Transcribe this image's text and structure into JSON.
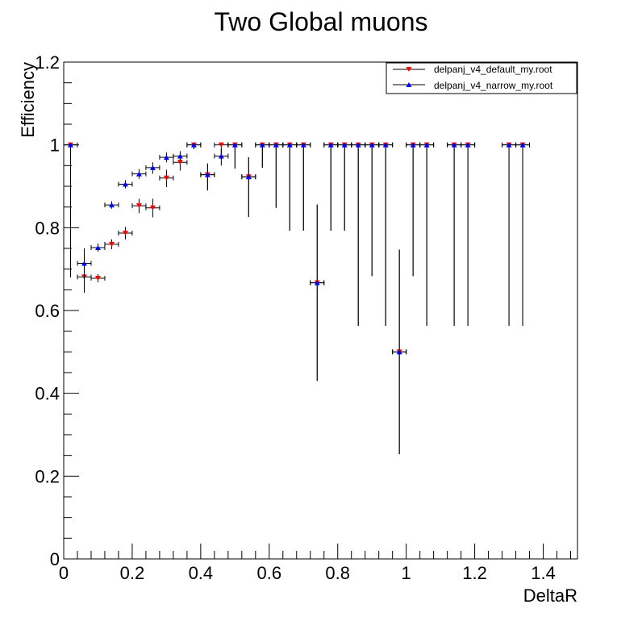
{
  "chart_data": {
    "type": "scatter",
    "title": "Two Global muons",
    "xlabel": "DeltaR",
    "ylabel": "Efficiency",
    "xlim": [
      0,
      1.5
    ],
    "ylim": [
      0,
      1.2
    ],
    "x_ticks": [
      0,
      0.2,
      0.4,
      0.6,
      0.8,
      1,
      1.2,
      1.4
    ],
    "x_tick_labels": [
      "0",
      "0.2",
      "0.4",
      "0.6",
      "0.8",
      "1",
      "1.2",
      "1.4"
    ],
    "y_ticks": [
      0,
      0.2,
      0.4,
      0.6,
      0.8,
      1,
      1.2
    ],
    "y_tick_labels": [
      "0",
      "0.2",
      "0.4",
      "0.6",
      "0.8",
      "1",
      "1.2"
    ],
    "x_error": 0.02,
    "grid": false,
    "legend_position": "top-right",
    "series": [
      {
        "name": "delpanj_v4_default_my.root",
        "marker": "triangle-down",
        "color": "#ff0000",
        "points": [
          {
            "x": 0.02,
            "y": 1.0,
            "ylo": 0.68,
            "yhi": 1.0
          },
          {
            "x": 0.06,
            "y": 0.681,
            "ylo": 0.643,
            "yhi": 0.717
          },
          {
            "x": 0.1,
            "y": 0.678,
            "ylo": 0.668,
            "yhi": 0.688
          },
          {
            "x": 0.14,
            "y": 0.76,
            "ylo": 0.748,
            "yhi": 0.772
          },
          {
            "x": 0.18,
            "y": 0.787,
            "ylo": 0.772,
            "yhi": 0.802
          },
          {
            "x": 0.22,
            "y": 0.853,
            "ylo": 0.835,
            "yhi": 0.87
          },
          {
            "x": 0.26,
            "y": 0.848,
            "ylo": 0.825,
            "yhi": 0.87
          },
          {
            "x": 0.3,
            "y": 0.92,
            "ylo": 0.898,
            "yhi": 0.94
          },
          {
            "x": 0.34,
            "y": 0.958,
            "ylo": 0.938,
            "yhi": 0.975
          },
          {
            "x": 0.38,
            "y": 1.0,
            "ylo": 0.99,
            "yhi": 1.0
          },
          {
            "x": 0.42,
            "y": 0.928,
            "ylo": 0.89,
            "yhi": 0.955
          },
          {
            "x": 0.46,
            "y": 1.0,
            "ylo": 0.965,
            "yhi": 1.0
          },
          {
            "x": 0.5,
            "y": 1.0,
            "ylo": 0.943,
            "yhi": 1.0
          },
          {
            "x": 0.54,
            "y": 0.923,
            "ylo": 0.826,
            "yhi": 0.97
          },
          {
            "x": 0.58,
            "y": 1.0,
            "ylo": 0.945,
            "yhi": 1.0
          },
          {
            "x": 0.62,
            "y": 1.0,
            "ylo": 0.848,
            "yhi": 1.0
          },
          {
            "x": 0.66,
            "y": 1.0,
            "ylo": 0.793,
            "yhi": 1.0
          },
          {
            "x": 0.7,
            "y": 1.0,
            "ylo": 0.793,
            "yhi": 1.0
          },
          {
            "x": 0.74,
            "y": 0.667,
            "ylo": 0.43,
            "yhi": 0.856
          },
          {
            "x": 0.78,
            "y": 1.0,
            "ylo": 0.793,
            "yhi": 1.0
          },
          {
            "x": 0.82,
            "y": 1.0,
            "ylo": 0.793,
            "yhi": 1.0
          },
          {
            "x": 0.86,
            "y": 1.0,
            "ylo": 0.563,
            "yhi": 1.0
          },
          {
            "x": 0.9,
            "y": 1.0,
            "ylo": 0.683,
            "yhi": 1.0
          },
          {
            "x": 0.94,
            "y": 1.0,
            "ylo": 0.563,
            "yhi": 1.0
          },
          {
            "x": 0.98,
            "y": 0.5,
            "ylo": 0.253,
            "yhi": 0.747
          },
          {
            "x": 1.02,
            "y": 1.0,
            "ylo": 0.683,
            "yhi": 1.0
          },
          {
            "x": 1.06,
            "y": 1.0,
            "ylo": 0.563,
            "yhi": 1.0
          },
          {
            "x": 1.14,
            "y": 1.0,
            "ylo": 0.563,
            "yhi": 1.0
          },
          {
            "x": 1.18,
            "y": 1.0,
            "ylo": 0.563,
            "yhi": 1.0
          },
          {
            "x": 1.3,
            "y": 1.0,
            "ylo": 0.563,
            "yhi": 1.0
          },
          {
            "x": 1.34,
            "y": 1.0,
            "ylo": 0.563,
            "yhi": 1.0
          }
        ]
      },
      {
        "name": "delpanj_v4_narrow_my.root",
        "marker": "triangle-up",
        "color": "#0000ff",
        "points": [
          {
            "x": 0.02,
            "y": 1.0,
            "ylo": 0.68,
            "yhi": 1.0
          },
          {
            "x": 0.06,
            "y": 0.714,
            "ylo": 0.675,
            "yhi": 0.75
          },
          {
            "x": 0.1,
            "y": 0.752,
            "ylo": 0.742,
            "yhi": 0.762
          },
          {
            "x": 0.14,
            "y": 0.855,
            "ylo": 0.846,
            "yhi": 0.864
          },
          {
            "x": 0.18,
            "y": 0.905,
            "ylo": 0.895,
            "yhi": 0.915
          },
          {
            "x": 0.22,
            "y": 0.93,
            "ylo": 0.918,
            "yhi": 0.942
          },
          {
            "x": 0.26,
            "y": 0.945,
            "ylo": 0.93,
            "yhi": 0.958
          },
          {
            "x": 0.3,
            "y": 0.97,
            "ylo": 0.958,
            "yhi": 0.982
          },
          {
            "x": 0.34,
            "y": 0.973,
            "ylo": 0.96,
            "yhi": 0.985
          },
          {
            "x": 0.38,
            "y": 1.0,
            "ylo": 0.99,
            "yhi": 1.0
          },
          {
            "x": 0.42,
            "y": 0.928,
            "ylo": 0.89,
            "yhi": 0.955
          },
          {
            "x": 0.46,
            "y": 0.973,
            "ylo": 0.95,
            "yhi": 0.99
          },
          {
            "x": 0.5,
            "y": 1.0,
            "ylo": 0.943,
            "yhi": 1.0
          },
          {
            "x": 0.54,
            "y": 0.923,
            "ylo": 0.826,
            "yhi": 0.97
          },
          {
            "x": 0.58,
            "y": 1.0,
            "ylo": 0.945,
            "yhi": 1.0
          },
          {
            "x": 0.62,
            "y": 1.0,
            "ylo": 0.848,
            "yhi": 1.0
          },
          {
            "x": 0.66,
            "y": 1.0,
            "ylo": 0.793,
            "yhi": 1.0
          },
          {
            "x": 0.7,
            "y": 1.0,
            "ylo": 0.793,
            "yhi": 1.0
          },
          {
            "x": 0.74,
            "y": 0.667,
            "ylo": 0.43,
            "yhi": 0.856
          },
          {
            "x": 0.78,
            "y": 1.0,
            "ylo": 0.793,
            "yhi": 1.0
          },
          {
            "x": 0.82,
            "y": 1.0,
            "ylo": 0.793,
            "yhi": 1.0
          },
          {
            "x": 0.86,
            "y": 1.0,
            "ylo": 0.563,
            "yhi": 1.0
          },
          {
            "x": 0.9,
            "y": 1.0,
            "ylo": 0.683,
            "yhi": 1.0
          },
          {
            "x": 0.94,
            "y": 1.0,
            "ylo": 0.563,
            "yhi": 1.0
          },
          {
            "x": 0.98,
            "y": 0.5,
            "ylo": 0.253,
            "yhi": 0.747
          },
          {
            "x": 1.02,
            "y": 1.0,
            "ylo": 0.683,
            "yhi": 1.0
          },
          {
            "x": 1.06,
            "y": 1.0,
            "ylo": 0.563,
            "yhi": 1.0
          },
          {
            "x": 1.14,
            "y": 1.0,
            "ylo": 0.563,
            "yhi": 1.0
          },
          {
            "x": 1.18,
            "y": 1.0,
            "ylo": 0.563,
            "yhi": 1.0
          },
          {
            "x": 1.3,
            "y": 1.0,
            "ylo": 0.563,
            "yhi": 1.0
          },
          {
            "x": 1.34,
            "y": 1.0,
            "ylo": 0.563,
            "yhi": 1.0
          }
        ]
      }
    ]
  }
}
